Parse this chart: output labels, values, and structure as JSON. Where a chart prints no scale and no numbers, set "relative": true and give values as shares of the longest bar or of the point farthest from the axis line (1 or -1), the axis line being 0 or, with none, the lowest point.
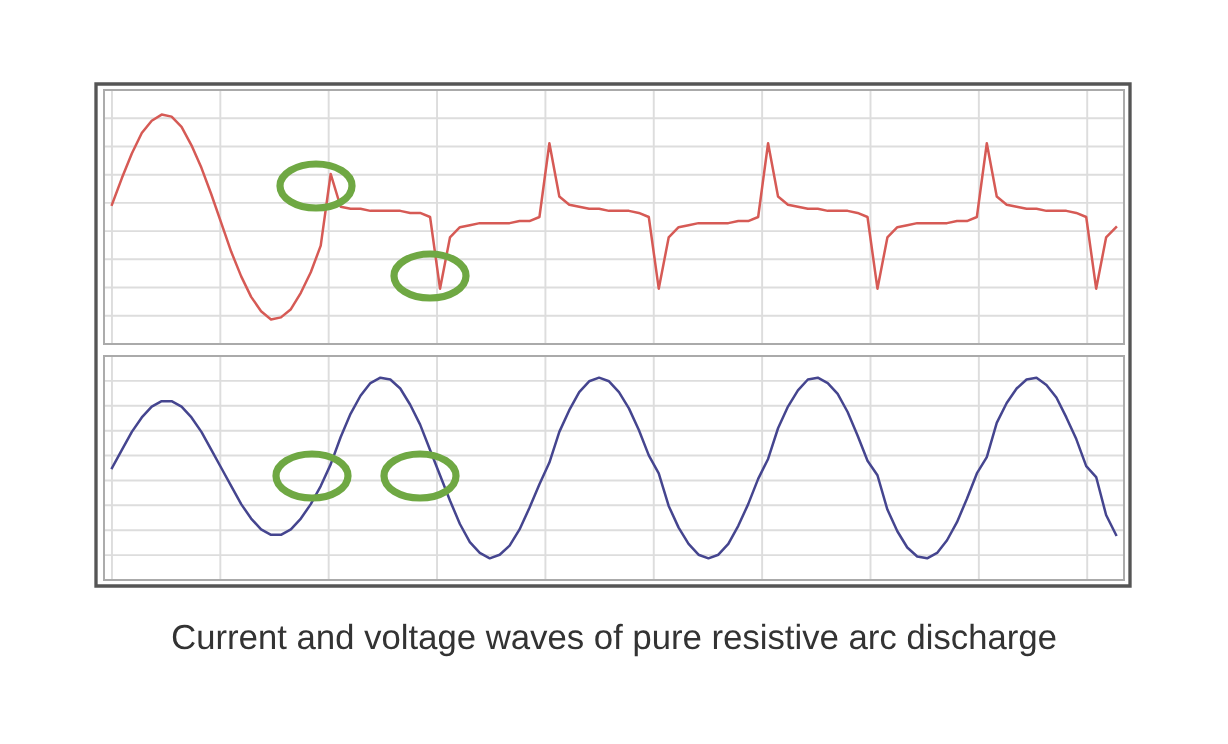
{
  "chart_data": [
    {
      "type": "line",
      "relative": true,
      "grid": true,
      "marker": "none",
      "line_style": "solid",
      "categories": [
        null,
        null,
        null,
        null,
        null,
        null,
        null,
        null,
        null,
        null,
        null,
        null,
        null,
        null,
        null,
        null,
        null,
        null,
        null,
        null,
        null,
        null,
        null,
        null,
        null,
        null,
        null,
        null,
        null,
        null,
        null,
        null,
        null,
        null,
        null,
        null,
        null,
        null,
        null,
        null,
        null,
        null,
        null,
        null,
        null,
        null,
        null,
        null,
        null,
        null,
        null,
        null,
        null,
        null,
        null,
        null,
        null,
        null,
        null,
        null,
        null,
        null,
        null,
        null,
        null,
        null,
        null,
        null,
        null,
        null,
        null,
        null,
        null,
        null,
        null,
        null,
        null,
        null,
        null,
        null,
        null,
        null,
        null,
        null,
        null,
        null,
        null,
        null,
        null,
        null,
        null,
        null,
        null,
        null,
        null,
        null,
        null,
        null,
        null,
        null,
        null,
        null
      ],
      "series": [
        {
          "color": "#d65a55",
          "values": [
            0.56,
            0.69,
            0.81,
            0.91,
            0.97,
            1.0,
            0.99,
            0.94,
            0.85,
            0.74,
            0.61,
            0.47,
            0.33,
            0.21,
            0.11,
            0.04,
            0.0,
            0.01,
            0.05,
            0.13,
            0.23,
            0.36,
            0.71,
            0.55,
            0.54,
            0.54,
            0.53,
            0.53,
            0.53,
            0.53,
            0.52,
            0.52,
            0.5,
            0.15,
            0.4,
            0.45,
            0.46,
            0.47,
            0.47,
            0.47,
            0.47,
            0.48,
            0.48,
            0.5,
            0.86,
            0.6,
            0.56,
            0.55,
            0.54,
            0.54,
            0.53,
            0.53,
            0.53,
            0.52,
            0.5,
            0.15,
            0.4,
            0.45,
            0.46,
            0.47,
            0.47,
            0.47,
            0.47,
            0.48,
            0.48,
            0.5,
            0.86,
            0.6,
            0.56,
            0.55,
            0.54,
            0.54,
            0.53,
            0.53,
            0.53,
            0.52,
            0.5,
            0.15,
            0.4,
            0.45,
            0.46,
            0.47,
            0.47,
            0.47,
            0.47,
            0.48,
            0.48,
            0.5,
            0.86,
            0.6,
            0.56,
            0.55,
            0.54,
            0.54,
            0.53,
            0.53,
            0.53,
            0.52,
            0.5,
            0.15,
            0.4,
            0.45
          ]
        }
      ]
    },
    {
      "type": "line",
      "relative": true,
      "grid": true,
      "marker": "none",
      "line_style": "solid",
      "categories": [
        null,
        null,
        null,
        null,
        null,
        null,
        null,
        null,
        null,
        null,
        null,
        null,
        null,
        null,
        null,
        null,
        null,
        null,
        null,
        null,
        null,
        null,
        null,
        null,
        null,
        null,
        null,
        null,
        null,
        null,
        null,
        null,
        null,
        null,
        null,
        null,
        null,
        null,
        null,
        null,
        null,
        null,
        null,
        null,
        null,
        null,
        null,
        null,
        null,
        null,
        null,
        null,
        null,
        null,
        null,
        null,
        null,
        null,
        null,
        null,
        null,
        null,
        null,
        null,
        null,
        null,
        null,
        null,
        null,
        null,
        null,
        null,
        null,
        null,
        null,
        null,
        null,
        null,
        null,
        null,
        null,
        null,
        null,
        null,
        null,
        null,
        null,
        null,
        null,
        null,
        null,
        null,
        null,
        null,
        null,
        null,
        null,
        null,
        null,
        null,
        null,
        null
      ],
      "series": [
        {
          "color": "#45458f",
          "values": [
            0.5,
            0.6,
            0.7,
            0.78,
            0.84,
            0.87,
            0.87,
            0.84,
            0.78,
            0.7,
            0.6,
            0.5,
            0.4,
            0.3,
            0.22,
            0.16,
            0.13,
            0.13,
            0.16,
            0.22,
            0.3,
            0.4,
            0.52,
            0.67,
            0.8,
            0.9,
            0.97,
            1.0,
            0.99,
            0.94,
            0.85,
            0.74,
            0.6,
            0.46,
            0.32,
            0.19,
            0.09,
            0.03,
            0.0,
            0.02,
            0.07,
            0.16,
            0.28,
            0.41,
            0.53,
            0.7,
            0.82,
            0.92,
            0.98,
            1.0,
            0.98,
            0.92,
            0.83,
            0.71,
            0.57,
            0.47,
            0.29,
            0.17,
            0.08,
            0.02,
            0.0,
            0.02,
            0.08,
            0.18,
            0.3,
            0.44,
            0.55,
            0.72,
            0.84,
            0.93,
            0.99,
            1.0,
            0.97,
            0.91,
            0.81,
            0.68,
            0.54,
            0.46,
            0.27,
            0.15,
            0.06,
            0.01,
            0.0,
            0.03,
            0.1,
            0.2,
            0.33,
            0.47,
            0.56,
            0.75,
            0.86,
            0.94,
            0.99,
            1.0,
            0.96,
            0.89,
            0.78,
            0.66,
            0.51,
            0.45,
            0.24,
            0.13
          ]
        }
      ],
      "annotations": [
        "Current and voltage waves of pure resistive arc discharge"
      ]
    }
  ]
}
